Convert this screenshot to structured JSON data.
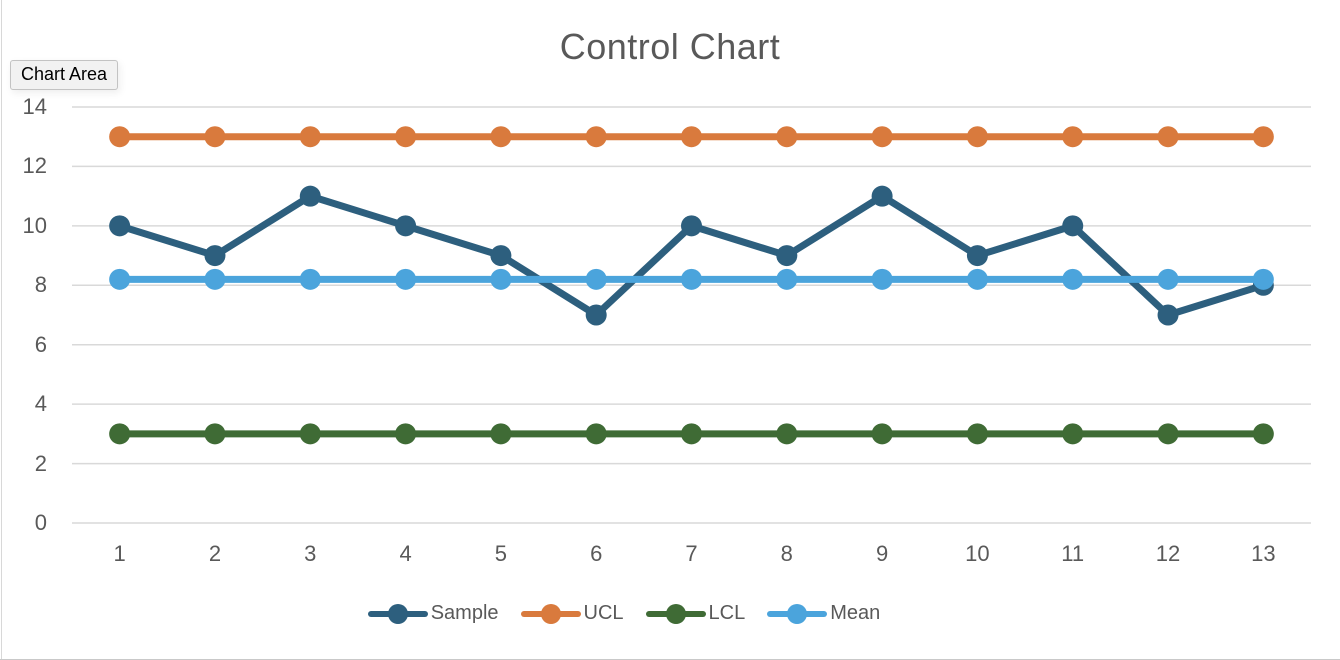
{
  "tooltip": {
    "label": "Chart Area"
  },
  "chart_data": {
    "type": "line",
    "title": "Control Chart",
    "categories": [
      1,
      2,
      3,
      4,
      5,
      6,
      7,
      8,
      9,
      10,
      11,
      12,
      13
    ],
    "series": [
      {
        "name": "Sample",
        "color": "#2D5F7E",
        "values": [
          10,
          9,
          11,
          10,
          9,
          7,
          10,
          9,
          11,
          9,
          10,
          7,
          8
        ]
      },
      {
        "name": "UCL",
        "color": "#D97A3D",
        "values": [
          13,
          13,
          13,
          13,
          13,
          13,
          13,
          13,
          13,
          13,
          13,
          13,
          13
        ]
      },
      {
        "name": "LCL",
        "color": "#3F6B35",
        "values": [
          3,
          3,
          3,
          3,
          3,
          3,
          3,
          3,
          3,
          3,
          3,
          3,
          3
        ]
      },
      {
        "name": "Mean",
        "color": "#4BA4DC",
        "values": [
          8.2,
          8.2,
          8.2,
          8.2,
          8.2,
          8.2,
          8.2,
          8.2,
          8.2,
          8.2,
          8.2,
          8.2,
          8.2
        ]
      }
    ],
    "ylim": [
      0,
      14
    ],
    "yticks": [
      0,
      2,
      4,
      6,
      8,
      10,
      12,
      14
    ],
    "grid": true,
    "legend_position": "bottom",
    "xlabel": "",
    "ylabel": "",
    "text_color": "#595959",
    "grid_color": "#D9D9D9"
  }
}
